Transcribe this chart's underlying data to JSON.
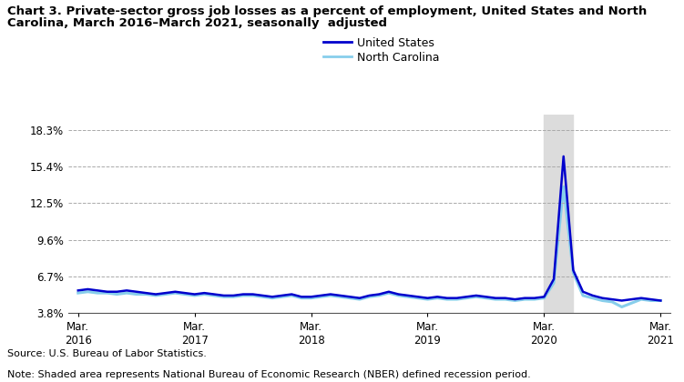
{
  "title_line1": "Chart 3. Private-sector gross job losses as a percent of employment, United States and North",
  "title_line2": "Carolina, March 2016–March 2021, seasonally  adjusted",
  "source": "Source: U.S. Bureau of Labor Statistics.",
  "note": "Note: Shaded area represents National Bureau of Economic Research (NBER) defined recession period.",
  "legend": [
    "United States",
    "North Carolina"
  ],
  "us_color": "#0000CC",
  "nc_color": "#87CEEB",
  "background_color": "#ffffff",
  "shade_color": "#DCDCDC",
  "yticks": [
    3.8,
    6.7,
    9.6,
    12.5,
    15.4,
    18.3
  ],
  "ylim": [
    3.8,
    19.5
  ],
  "recession_start": 48,
  "recession_end": 51,
  "xtick_labels": [
    "Mar.\n2016",
    "Mar.\n2017",
    "Mar.\n2018",
    "Mar.\n2019",
    "Mar.\n2020",
    "Mar.\n2021"
  ],
  "xtick_positions": [
    0,
    12,
    24,
    36,
    48,
    60
  ],
  "us_data": [
    5.6,
    5.7,
    5.6,
    5.5,
    5.5,
    5.6,
    5.5,
    5.4,
    5.3,
    5.4,
    5.5,
    5.4,
    5.3,
    5.4,
    5.3,
    5.2,
    5.2,
    5.3,
    5.3,
    5.2,
    5.1,
    5.2,
    5.3,
    5.1,
    5.1,
    5.2,
    5.3,
    5.2,
    5.1,
    5.0,
    5.2,
    5.3,
    5.5,
    5.3,
    5.2,
    5.1,
    5.0,
    5.1,
    5.0,
    5.0,
    5.1,
    5.2,
    5.1,
    5.0,
    5.0,
    4.9,
    5.0,
    5.0,
    5.1,
    6.5,
    16.2,
    7.2,
    5.5,
    5.2,
    5.0,
    4.9,
    4.8,
    4.9,
    5.0,
    4.9,
    4.8
  ],
  "nc_data": [
    5.4,
    5.5,
    5.4,
    5.4,
    5.3,
    5.4,
    5.3,
    5.3,
    5.2,
    5.3,
    5.4,
    5.3,
    5.2,
    5.3,
    5.2,
    5.1,
    5.1,
    5.2,
    5.2,
    5.1,
    5.0,
    5.1,
    5.2,
    5.0,
    5.0,
    5.1,
    5.2,
    5.1,
    5.0,
    4.9,
    5.1,
    5.2,
    5.4,
    5.2,
    5.1,
    5.0,
    4.9,
    5.0,
    4.9,
    4.9,
    5.0,
    5.1,
    5.0,
    4.9,
    4.9,
    4.8,
    4.9,
    4.9,
    5.0,
    6.2,
    13.8,
    7.0,
    5.2,
    5.0,
    4.8,
    4.7,
    4.3,
    4.6,
    4.9,
    4.8,
    4.8
  ]
}
